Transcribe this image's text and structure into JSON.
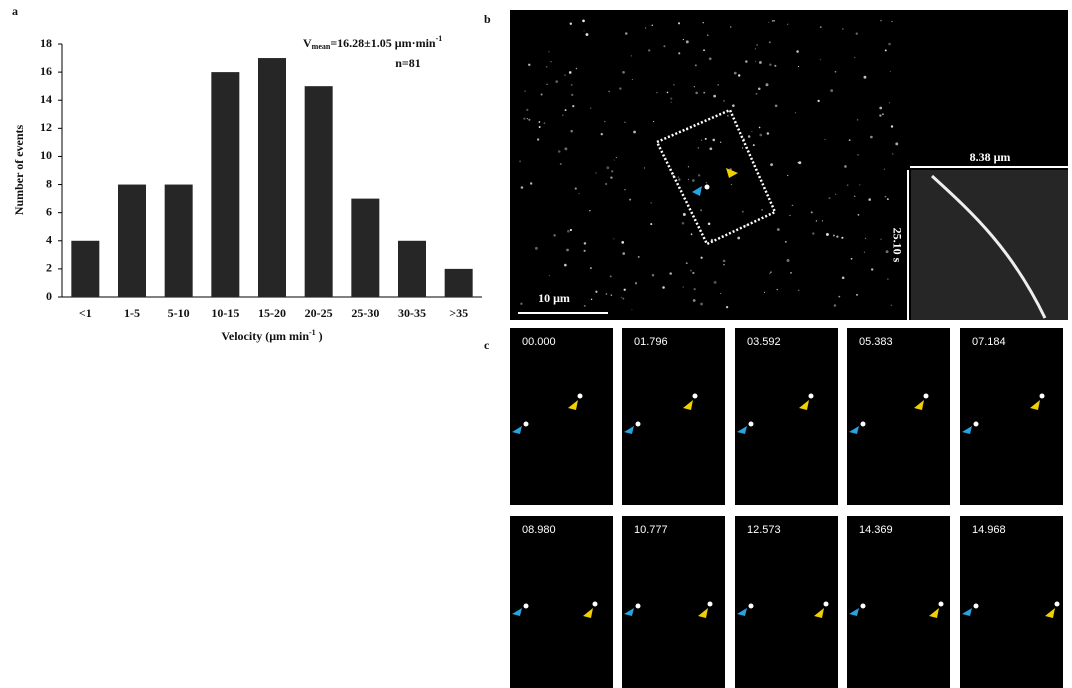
{
  "chart_data": {
    "type": "bar",
    "panel_label": "a",
    "categories": [
      "<1",
      "1-5",
      "5-10",
      "10-15",
      "15-20",
      "20-25",
      "25-30",
      "30-35",
      ">35"
    ],
    "values": [
      4,
      8,
      8,
      16,
      17,
      15,
      7,
      4,
      2
    ],
    "color": "#262626",
    "ylim": [
      0,
      18
    ],
    "yticks": [
      0,
      2,
      4,
      6,
      8,
      10,
      12,
      14,
      16,
      18
    ],
    "ylabel": "Number of events",
    "xlabel": {
      "main": "Velocity (μm min",
      "sup": "-1",
      "end": " )"
    },
    "annotation": {
      "main": "V",
      "sub": "mean",
      "rest": "=16.28±1.05 μm·min",
      "sup": "-1",
      "line2": "n=81"
    }
  },
  "panel_b": {
    "label": "b",
    "scale_bar": "10 μm",
    "inset_width": "8.38 μm",
    "inset_time": "25.10 s"
  },
  "panel_c": {
    "label": "c",
    "times": [
      "00.000",
      "01.796",
      "03.592",
      "05.383",
      "07.184",
      "08.980",
      "10.777",
      "12.573",
      "14.369",
      "14.968"
    ]
  }
}
